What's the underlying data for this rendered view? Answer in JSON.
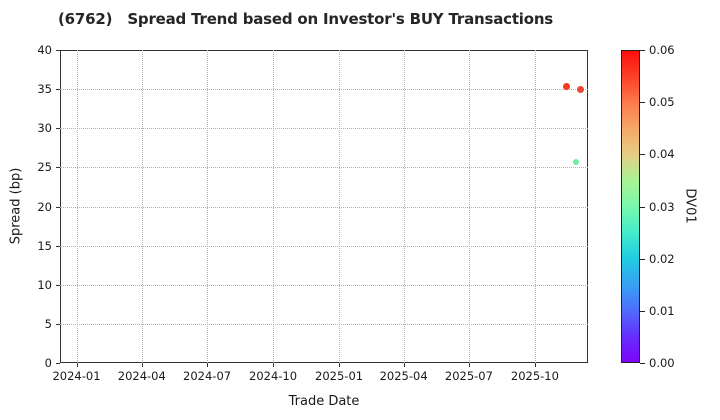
{
  "title": "(6762)   Spread Trend based on Investor's BUY Transactions",
  "chart_data": {
    "type": "scatter",
    "xlabel": "Trade Date",
    "ylabel": "Spread (bp)",
    "ylim": [
      0,
      40
    ],
    "y_ticks": [
      0,
      5,
      10,
      15,
      20,
      25,
      30,
      35,
      40
    ],
    "x_range": [
      "2023-12-09",
      "2025-12-14"
    ],
    "x_ticks": [
      {
        "date": "2024-01-01",
        "label": "2024-01"
      },
      {
        "date": "2024-04-01",
        "label": "2024-04"
      },
      {
        "date": "2024-07-01",
        "label": "2024-07"
      },
      {
        "date": "2024-10-01",
        "label": "2024-10"
      },
      {
        "date": "2025-01-01",
        "label": "2025-01"
      },
      {
        "date": "2025-04-01",
        "label": "2025-04"
      },
      {
        "date": "2025-07-01",
        "label": "2025-07"
      },
      {
        "date": "2025-10-01",
        "label": "2025-10"
      }
    ],
    "grid_style": "dotted",
    "grid_color": "#b3b3b3",
    "spine_color": "#333333",
    "text_color": "#1a1a1a",
    "points": [
      {
        "date": "2025-11-14",
        "spread_bp": 35.3,
        "dv01": 0.055,
        "color": "#f53a1e",
        "size": 7
      },
      {
        "date": "2025-12-04",
        "spread_bp": 34.9,
        "dv01": 0.054,
        "color": "#ef4630",
        "size": 7
      },
      {
        "date": "2025-11-27",
        "spread_bp": 25.7,
        "dv01": 0.033,
        "color": "#72eba1",
        "size": 6
      }
    ],
    "colorbar": {
      "label": "DV01",
      "min": 0.0,
      "max": 0.06,
      "tick_labels": [
        "0.00",
        "0.01",
        "0.02",
        "0.03",
        "0.04",
        "0.05",
        "0.06"
      ],
      "gradient_stops": [
        {
          "at": 0.0,
          "color": "#7c05f9"
        },
        {
          "at": 0.005,
          "color": "#652ffb"
        },
        {
          "at": 0.01,
          "color": "#4e6cfd"
        },
        {
          "at": 0.015,
          "color": "#37a2f2"
        },
        {
          "at": 0.02,
          "color": "#21cce2"
        },
        {
          "at": 0.025,
          "color": "#44eccb"
        },
        {
          "at": 0.03,
          "color": "#79f8ac"
        },
        {
          "at": 0.035,
          "color": "#a9f393"
        },
        {
          "at": 0.04,
          "color": "#e5cd86"
        },
        {
          "at": 0.045,
          "color": "#f6a866"
        },
        {
          "at": 0.05,
          "color": "#fb7b4c"
        },
        {
          "at": 0.055,
          "color": "#fd4127"
        },
        {
          "at": 0.06,
          "color": "#fb0f0c"
        }
      ]
    }
  }
}
